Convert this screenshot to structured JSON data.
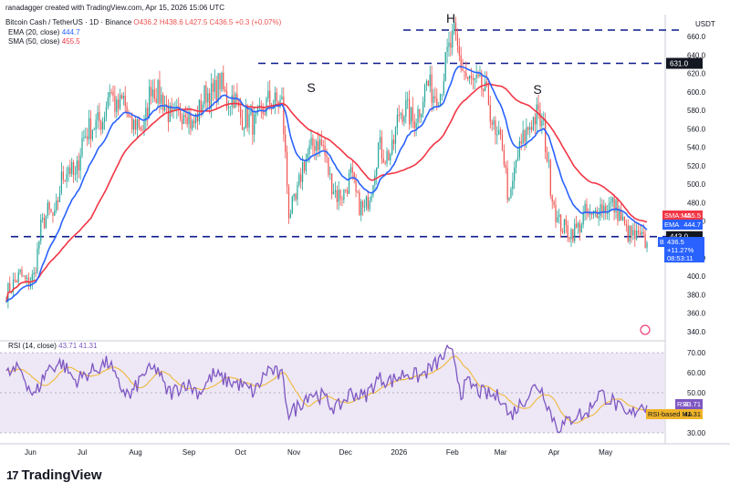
{
  "header": {
    "line1": "ranadagger created with TradingView.com, Apr 15, 2026 15:06 UTC",
    "symbol": "Bitcoin Cash / TetherUS · 1D · Binance",
    "ohlc": "O436.2 H438.6 L427.5 C436.5 +0.3 (+0.07%)",
    "ema_label": "EMA (20, close)",
    "ema_value": "444.7",
    "sma_label": "SMA (50, close)",
    "sma_value": "455.5",
    "rsi_label": "RSI (14, close)",
    "rsi_values": "43.71  41.31"
  },
  "colors": {
    "up": "#26a69a",
    "down": "#ef5350",
    "ema": "#2962ff",
    "sma": "#f23645",
    "rsi": "#7e57c2",
    "rsi_ma": "#f0b429",
    "level": "#0d1a8c",
    "rsi_band": "#ede7f6",
    "price_badge": "#2962ff"
  },
  "price_axis": {
    "unit": "USDT",
    "ticks": [
      "660.0",
      "640.0",
      "620.0",
      "600.0",
      "580.0",
      "560.0",
      "540.0",
      "520.0",
      "500.0",
      "480.0",
      "460.0",
      "420.0",
      "400.0",
      "380.0",
      "360.0",
      "340.0"
    ],
    "badges": {
      "top_level": "631.0",
      "sma_tag": "SMA",
      "sma_tag2": "MA",
      "sma_value": "455.5",
      "ema_tag": "EMA",
      "ema_value": "444.7",
      "bottom_level": "443.0",
      "symbol_tag": "BCHUSDT",
      "price": "436.5",
      "change": "+11.27%",
      "countdown": "08:53:11"
    }
  },
  "rsi_axis": {
    "ticks": [
      "70.00",
      "60.00",
      "50.00",
      "30.00"
    ],
    "rsi_tag": "RSI",
    "rsi_value": "43.71",
    "ma_tag": "RSI-based MA",
    "ma_value": "41.31"
  },
  "time_axis": {
    "labels": [
      "Jun",
      "Jul",
      "Aug",
      "Sep",
      "Oct",
      "Nov",
      "Dec",
      "2026",
      "Feb",
      "Mar",
      "Apr",
      "May"
    ]
  },
  "annotations": {
    "head": "H",
    "left_shoulder": "S",
    "right_shoulder": "S"
  },
  "branding": {
    "logo_text": "TradingView",
    "logo_mark": "17"
  },
  "chart_data": {
    "type": "candlestick",
    "title": "Bitcoin Cash / TetherUS · 1D · Binance",
    "ylim": [
      330,
      675
    ],
    "rsi_ylim": [
      25,
      75
    ],
    "levels": [
      631,
      443
    ],
    "price_anchors": [
      [
        0,
        382
      ],
      [
        4,
        392
      ],
      [
        8,
        402
      ],
      [
        12,
        392
      ],
      [
        16,
        400
      ],
      [
        20,
        452
      ],
      [
        24,
        470
      ],
      [
        28,
        462
      ],
      [
        32,
        505
      ],
      [
        36,
        520
      ],
      [
        40,
        505
      ],
      [
        44,
        548
      ],
      [
        48,
        560
      ],
      [
        52,
        565
      ],
      [
        56,
        570
      ],
      [
        60,
        605
      ],
      [
        64,
        580
      ],
      [
        68,
        592
      ],
      [
        72,
        560
      ],
      [
        76,
        568
      ],
      [
        80,
        560
      ],
      [
        84,
        608
      ],
      [
        88,
        598
      ],
      [
        92,
        588
      ],
      [
        96,
        568
      ],
      [
        100,
        574
      ],
      [
        104,
        585
      ],
      [
        108,
        562
      ],
      [
        112,
        580
      ],
      [
        116,
        600
      ],
      [
        120,
        596
      ],
      [
        124,
        612
      ],
      [
        128,
        590
      ],
      [
        132,
        596
      ],
      [
        136,
        572
      ],
      [
        140,
        572
      ],
      [
        144,
        565
      ],
      [
        148,
        575
      ],
      [
        152,
        590
      ],
      [
        156,
        588
      ],
      [
        160,
        588
      ],
      [
        164,
        470
      ],
      [
        168,
        480
      ],
      [
        172,
        520
      ],
      [
        176,
        535
      ],
      [
        180,
        548
      ],
      [
        184,
        540
      ],
      [
        188,
        505
      ],
      [
        192,
        488
      ],
      [
        196,
        490
      ],
      [
        200,
        510
      ],
      [
        204,
        480
      ],
      [
        208,
        470
      ],
      [
        212,
        498
      ],
      [
        216,
        542
      ],
      [
        220,
        530
      ],
      [
        224,
        535
      ],
      [
        228,
        578
      ],
      [
        232,
        582
      ],
      [
        236,
        568
      ],
      [
        240,
        582
      ],
      [
        244,
        610
      ],
      [
        248,
        598
      ],
      [
        252,
        600
      ],
      [
        256,
        640
      ],
      [
        260,
        660
      ],
      [
        264,
        630
      ],
      [
        268,
        612
      ],
      [
        272,
        608
      ],
      [
        276,
        605
      ],
      [
        280,
        590
      ],
      [
        284,
        548
      ],
      [
        288,
        545
      ],
      [
        292,
        475
      ],
      [
        296,
        525
      ],
      [
        300,
        548
      ],
      [
        304,
        565
      ],
      [
        308,
        575
      ],
      [
        312,
        560
      ],
      [
        316,
        500
      ],
      [
        320,
        460
      ],
      [
        324,
        452
      ],
      [
        328,
        448
      ],
      [
        332,
        452
      ],
      [
        336,
        468
      ],
      [
        340,
        462
      ],
      [
        344,
        476
      ],
      [
        348,
        474
      ],
      [
        352,
        478
      ],
      [
        356,
        468
      ],
      [
        360,
        448
      ],
      [
        364,
        443
      ],
      [
        368,
        440
      ],
      [
        372,
        436.5
      ]
    ],
    "rsi_anchors": [
      [
        0,
        59
      ],
      [
        8,
        62
      ],
      [
        16,
        48
      ],
      [
        24,
        62
      ],
      [
        32,
        65
      ],
      [
        40,
        56
      ],
      [
        48,
        60
      ],
      [
        56,
        64
      ],
      [
        60,
        65
      ],
      [
        64,
        55
      ],
      [
        72,
        48
      ],
      [
        80,
        60
      ],
      [
        88,
        62
      ],
      [
        92,
        52
      ],
      [
        96,
        50
      ],
      [
        104,
        55
      ],
      [
        112,
        50
      ],
      [
        120,
        59
      ],
      [
        128,
        56
      ],
      [
        136,
        54
      ],
      [
        144,
        50
      ],
      [
        152,
        62
      ],
      [
        160,
        58
      ],
      [
        164,
        40
      ],
      [
        168,
        42
      ],
      [
        176,
        50
      ],
      [
        184,
        48
      ],
      [
        188,
        44
      ],
      [
        192,
        42
      ],
      [
        200,
        50
      ],
      [
        208,
        48
      ],
      [
        216,
        57
      ],
      [
        224,
        56
      ],
      [
        232,
        60
      ],
      [
        240,
        58
      ],
      [
        248,
        63
      ],
      [
        256,
        70
      ],
      [
        260,
        68
      ],
      [
        264,
        50
      ],
      [
        268,
        55
      ],
      [
        276,
        50
      ],
      [
        284,
        48
      ],
      [
        288,
        48
      ],
      [
        292,
        38
      ],
      [
        300,
        46
      ],
      [
        308,
        54
      ],
      [
        312,
        50
      ],
      [
        316,
        40
      ],
      [
        320,
        33
      ],
      [
        324,
        34
      ],
      [
        332,
        40
      ],
      [
        336,
        38
      ],
      [
        344,
        50
      ],
      [
        352,
        46
      ],
      [
        356,
        42
      ],
      [
        360,
        38
      ],
      [
        364,
        40
      ],
      [
        368,
        44
      ],
      [
        372,
        43.71
      ]
    ],
    "x_range": [
      0,
      372
    ],
    "x_ticks": [
      [
        14,
        "Jun"
      ],
      [
        44,
        "Jul"
      ],
      [
        75,
        "Aug"
      ],
      [
        106,
        "Sep"
      ],
      [
        136,
        "Oct"
      ],
      [
        167,
        "Nov"
      ],
      [
        197,
        "Dec"
      ],
      [
        228,
        "2026"
      ],
      [
        259,
        "Feb"
      ],
      [
        287,
        "Mar"
      ],
      [
        318,
        "Apr"
      ],
      [
        348,
        "May"
      ]
    ]
  }
}
